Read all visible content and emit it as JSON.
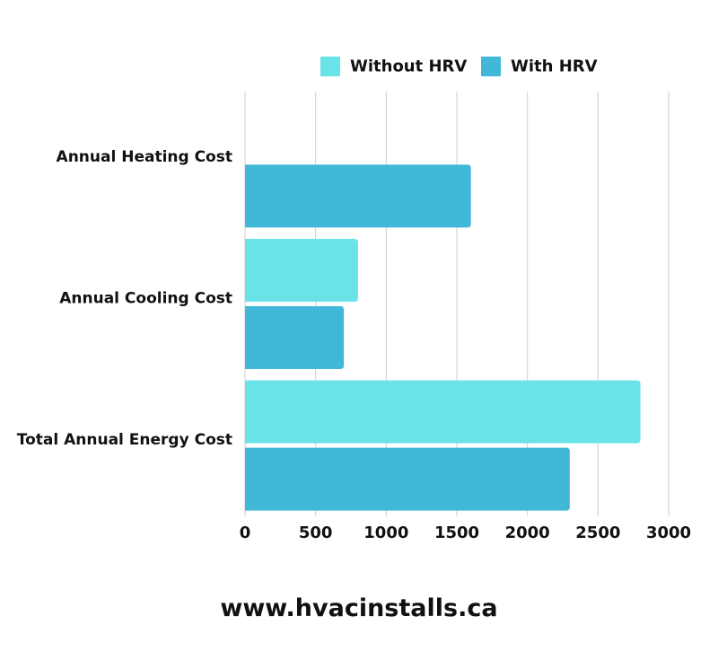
{
  "chart_data": {
    "type": "bar",
    "orientation": "horizontal",
    "categories": [
      "Annual Heating Cost",
      "Annual Cooling Cost",
      "Total Annual Energy Cost"
    ],
    "series": [
      {
        "name": "Without HRV",
        "values": [
          null,
          800,
          2800
        ],
        "color": "#69e3e8"
      },
      {
        "name": "With HRV",
        "values": [
          1600,
          700,
          2300
        ],
        "color": "#41b8d7"
      }
    ],
    "xlim": [
      0,
      3000
    ],
    "xticks": [
      0,
      500,
      1000,
      1500,
      2000,
      2500,
      3000
    ],
    "grid": true,
    "legend_position": "top"
  },
  "footer": {
    "website": "www.hvacinstalls.ca"
  }
}
